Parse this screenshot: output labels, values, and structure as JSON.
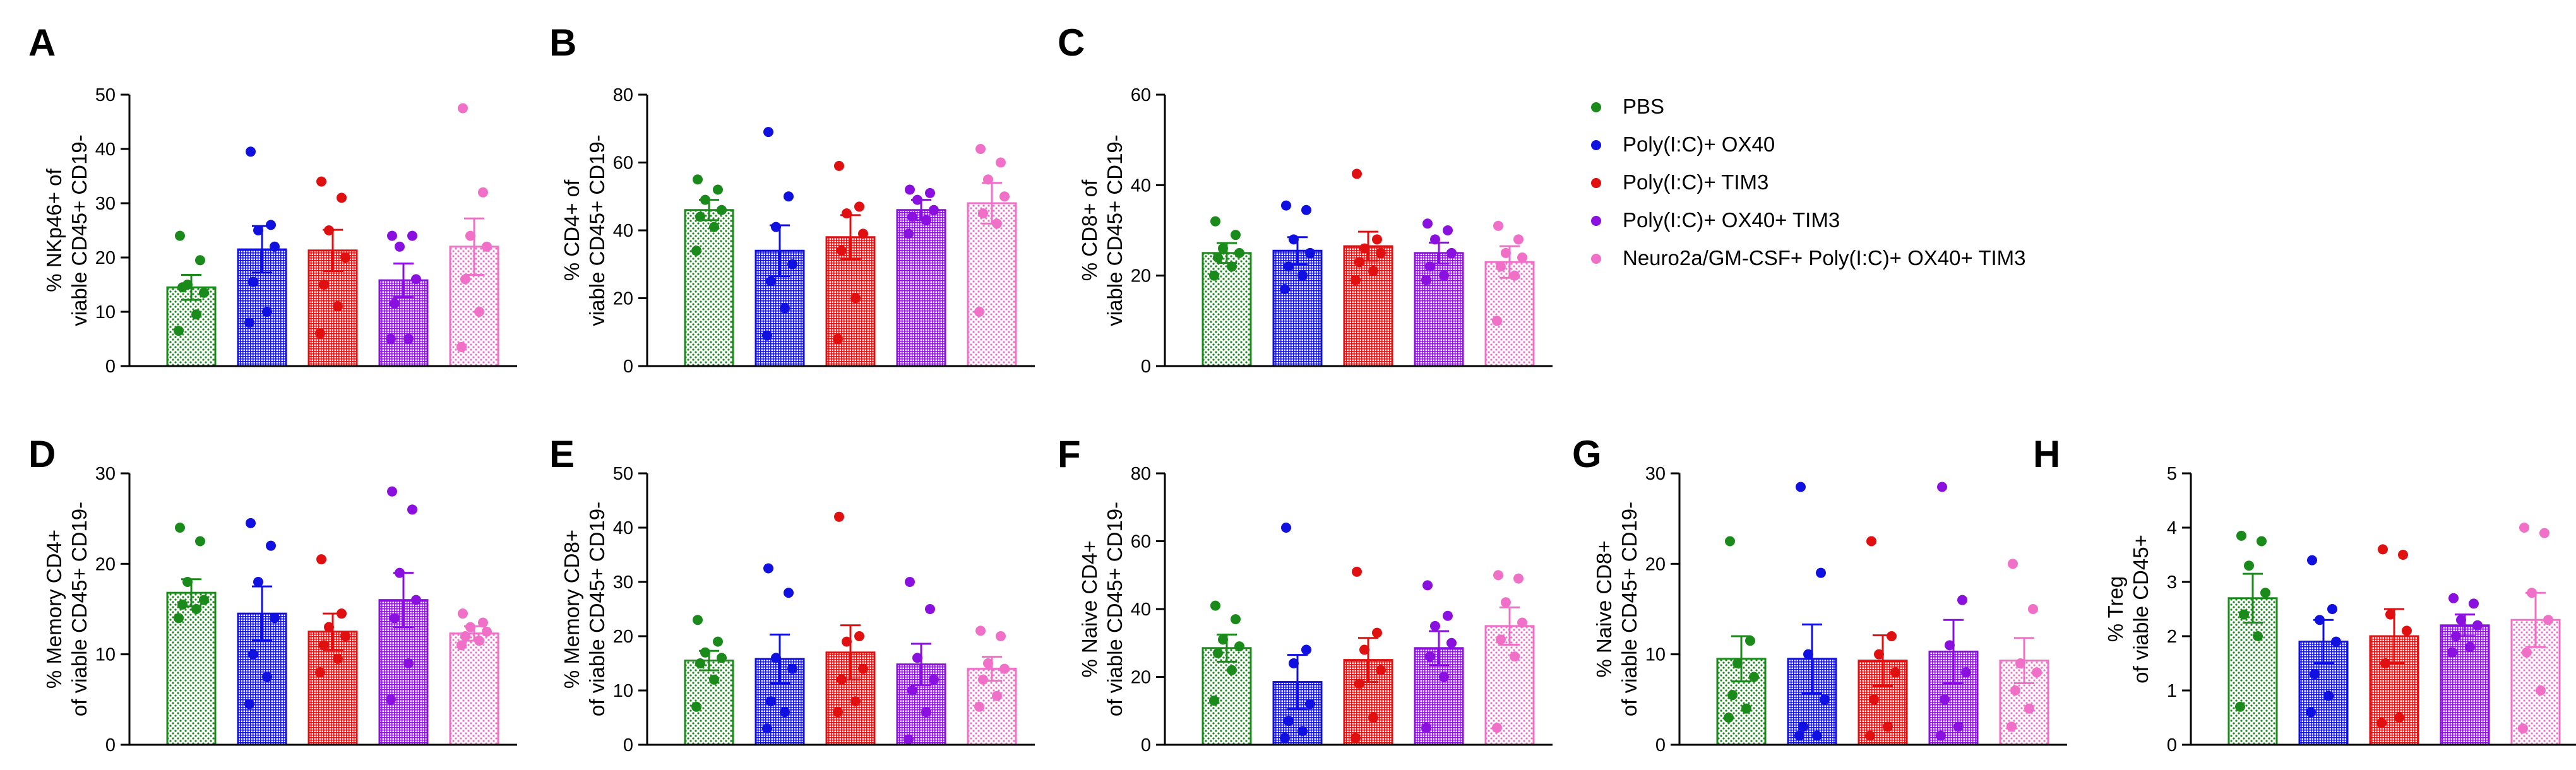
{
  "groups": [
    {
      "name": "PBS",
      "color": "#1a8a1a",
      "pattern": "dots"
    },
    {
      "name": "Poly(I:C)+ OX40",
      "color": "#1010e0",
      "pattern": "grid"
    },
    {
      "name": "Poly(I:C)+ TIM3",
      "color": "#e01010",
      "pattern": "grid"
    },
    {
      "name": "Poly(I:C)+ OX40+ TIM3",
      "color": "#8a10e0",
      "pattern": "grid"
    },
    {
      "name": "Neuro2a/GM-CSF+ Poly(I:C)+ OX40+ TIM3",
      "color": "#f070c8",
      "pattern": "dots"
    }
  ],
  "chart_data": [
    {
      "type": "bar",
      "panel": "A",
      "ylabel": [
        "% NKp46+ of",
        "viable CD45+ CD19-"
      ],
      "ylim": [
        0,
        50
      ],
      "yticks": [
        0,
        10,
        20,
        30,
        40,
        50
      ],
      "categories": [
        "PBS",
        "Poly(I:C)+ OX40",
        "Poly(I:C)+ TIM3",
        "Poly(I:C)+ OX40+ TIM3",
        "Neuro2a/GM-CSF+ Poly(I:C)+ OX40+ TIM3"
      ],
      "means": [
        14.5,
        21.5,
        21.3,
        15.8,
        22
      ],
      "sem": [
        2.3,
        4.3,
        3.8,
        3.1,
        5.2
      ],
      "points": [
        [
          24,
          19.5,
          15,
          13.5,
          14.5,
          9.5,
          6.5
        ],
        [
          39.5,
          26,
          25,
          22,
          15.5,
          10,
          8
        ],
        [
          34,
          31,
          25,
          20,
          15,
          11,
          6
        ],
        [
          24,
          24,
          22,
          16,
          11.5,
          5,
          5
        ],
        [
          47.5,
          32,
          24,
          22,
          16,
          10,
          3.5
        ]
      ]
    },
    {
      "type": "bar",
      "panel": "B",
      "ylabel": [
        "% CD4+ of",
        "viable CD45+ CD19-"
      ],
      "ylim": [
        0,
        80
      ],
      "yticks": [
        0,
        20,
        40,
        60,
        80
      ],
      "categories": [
        "PBS",
        "Poly(I:C)+ OX40",
        "Poly(I:C)+ TIM3",
        "Poly(I:C)+ OX40+ TIM3",
        "Neuro2a/GM-CSF+ Poly(I:C)+ OX40+ TIM3"
      ],
      "means": [
        46,
        34,
        38,
        46,
        48
      ],
      "sem": [
        3,
        7.5,
        6.5,
        3,
        6
      ],
      "points": [
        [
          55,
          52,
          49,
          46,
          44,
          41,
          34
        ],
        [
          69,
          50,
          41,
          30,
          25,
          17,
          9
        ],
        [
          59,
          47,
          45,
          39,
          34,
          20,
          8
        ],
        [
          52,
          51,
          49,
          46,
          44,
          43,
          39
        ],
        [
          64,
          60,
          55,
          50,
          45,
          42,
          16
        ]
      ]
    },
    {
      "type": "bar",
      "panel": "C",
      "ylabel": [
        "% CD8+ of",
        "viable CD45+ CD19-"
      ],
      "ylim": [
        0,
        60
      ],
      "yticks": [
        0,
        20,
        40,
        60
      ],
      "categories": [
        "PBS",
        "Poly(I:C)+ OX40",
        "Poly(I:C)+ TIM3",
        "Poly(I:C)+ OX40+ TIM3",
        "Neuro2a/GM-CSF+ Poly(I:C)+ OX40+ TIM3"
      ],
      "means": [
        25,
        25.5,
        26.5,
        25,
        23
      ],
      "sem": [
        2.2,
        3,
        3.2,
        2.3,
        3.5
      ],
      "points": [
        [
          32,
          29,
          26,
          25,
          24,
          22,
          20
        ],
        [
          35.5,
          34.5,
          28,
          25,
          22,
          20,
          17
        ],
        [
          42.5,
          28,
          26,
          25,
          23,
          21,
          19
        ],
        [
          31.5,
          30,
          28,
          25,
          22,
          20,
          19
        ],
        [
          31,
          28,
          25,
          24,
          22,
          20,
          10
        ]
      ]
    },
    {
      "type": "bar",
      "panel": "D",
      "ylabel": [
        "% Memory CD4+",
        "of viable CD45+ CD19-"
      ],
      "ylim": [
        0,
        30
      ],
      "yticks": [
        0,
        10,
        20,
        30
      ],
      "categories": [
        "PBS",
        "Poly(I:C)+ OX40",
        "Poly(I:C)+ TIM3",
        "Poly(I:C)+ OX40+ TIM3",
        "Neuro2a/GM-CSF+ Poly(I:C)+ OX40+ TIM3"
      ],
      "means": [
        16.8,
        14.5,
        12.5,
        16,
        12.3
      ],
      "sem": [
        1.5,
        3,
        2,
        3,
        0.8
      ],
      "points": [
        [
          24,
          22.5,
          18,
          16,
          15.5,
          15,
          14
        ],
        [
          24.5,
          22,
          18,
          14,
          10,
          7.5,
          4.5
        ],
        [
          20.5,
          14.5,
          13,
          12,
          11,
          9.5,
          8
        ],
        [
          28,
          26,
          19,
          16,
          14,
          9,
          5
        ],
        [
          14.5,
          13.5,
          13,
          12.5,
          12,
          11.5,
          11
        ]
      ]
    },
    {
      "type": "bar",
      "panel": "E",
      "ylabel": [
        "% Memory CD8+",
        "of viable CD45+ CD19-"
      ],
      "ylim": [
        0,
        50
      ],
      "yticks": [
        0,
        10,
        20,
        30,
        40,
        50
      ],
      "categories": [
        "PBS",
        "Poly(I:C)+ OX40",
        "Poly(I:C)+ TIM3",
        "Poly(I:C)+ OX40+ TIM3",
        "Neuro2a/GM-CSF+ Poly(I:C)+ OX40+ TIM3"
      ],
      "means": [
        15.5,
        15.8,
        17,
        14.8,
        14
      ],
      "sem": [
        1.8,
        4.5,
        5,
        3.8,
        2.2
      ],
      "points": [
        [
          23,
          19,
          17,
          16,
          15,
          12,
          7
        ],
        [
          32.5,
          28,
          16,
          14,
          8,
          6,
          3
        ],
        [
          42,
          20,
          19,
          14,
          12,
          8,
          6
        ],
        [
          30,
          25,
          16,
          12,
          10,
          6,
          1
        ],
        [
          21,
          20,
          15,
          14,
          12,
          9,
          7
        ]
      ]
    },
    {
      "type": "bar",
      "panel": "F",
      "ylabel": [
        "% Naive CD4+",
        "of viable CD45+ CD19-"
      ],
      "ylim": [
        0,
        80
      ],
      "yticks": [
        0,
        20,
        40,
        60,
        80
      ],
      "categories": [
        "PBS",
        "Poly(I:C)+ OX40",
        "Poly(I:C)+ TIM3",
        "Poly(I:C)+ OX40+ TIM3",
        "Neuro2a/GM-CSF+ Poly(I:C)+ OX40+ TIM3"
      ],
      "means": [
        28.5,
        18.5,
        25,
        28.5,
        35
      ],
      "sem": [
        4,
        8,
        6.5,
        5,
        5.5
      ],
      "points": [
        [
          41,
          37,
          31,
          29,
          27,
          22,
          13
        ],
        [
          64,
          28,
          24,
          12,
          7,
          4,
          2
        ],
        [
          51,
          33,
          28,
          22,
          18,
          8,
          2
        ],
        [
          47,
          38,
          35,
          30,
          26,
          20,
          5
        ],
        [
          50,
          49,
          42,
          36,
          31,
          26,
          5
        ]
      ]
    },
    {
      "type": "bar",
      "panel": "G",
      "ylabel": [
        "% Naive CD8+",
        "of viable CD45+ CD19-"
      ],
      "ylim": [
        0,
        30
      ],
      "yticks": [
        0,
        10,
        20,
        30
      ],
      "categories": [
        "PBS",
        "Poly(I:C)+ OX40",
        "Poly(I:C)+ TIM3",
        "Poly(I:C)+ OX40+ TIM3",
        "Neuro2a/GM-CSF+ Poly(I:C)+ OX40+ TIM3"
      ],
      "means": [
        9.5,
        9.5,
        9.3,
        10.3,
        9.3
      ],
      "sem": [
        2.5,
        3.8,
        2.8,
        3.5,
        2.5
      ],
      "points": [
        [
          22.5,
          11.5,
          9,
          7.5,
          5.5,
          4,
          3
        ],
        [
          28.5,
          19,
          10,
          5,
          2,
          1,
          1
        ],
        [
          22.5,
          12,
          10,
          8,
          5,
          2,
          1
        ],
        [
          28.5,
          16,
          11,
          8,
          5,
          2,
          1
        ],
        [
          20,
          15,
          9,
          8,
          6,
          4,
          2
        ]
      ]
    },
    {
      "type": "bar",
      "panel": "H",
      "ylabel": [
        "% Treg",
        "of viable CD45+"
      ],
      "ylim": [
        0,
        5
      ],
      "yticks": [
        0,
        1,
        2,
        3,
        4,
        5
      ],
      "categories": [
        "PBS",
        "Poly(I:C)+ OX40",
        "Poly(I:C)+ TIM3",
        "Poly(I:C)+ OX40+ TIM3",
        "Neuro2a/GM-CSF+ Poly(I:C)+ OX40+ TIM3"
      ],
      "means": [
        2.7,
        1.9,
        2,
        2.2,
        2.3
      ],
      "sem": [
        0.45,
        0.4,
        0.5,
        0.2,
        0.5
      ],
      "points": [
        [
          3.85,
          3.75,
          3.3,
          2.8,
          2.4,
          2,
          0.7
        ],
        [
          3.4,
          2.5,
          2.3,
          1.9,
          1.3,
          0.9,
          0.6
        ],
        [
          3.6,
          3.5,
          2.4,
          2.1,
          1.5,
          0.5,
          0.4
        ],
        [
          2.7,
          2.6,
          2.3,
          2.2,
          2,
          1.8,
          1.7
        ],
        [
          4,
          3.9,
          2.8,
          2.3,
          1.7,
          1,
          0.3
        ]
      ]
    }
  ]
}
